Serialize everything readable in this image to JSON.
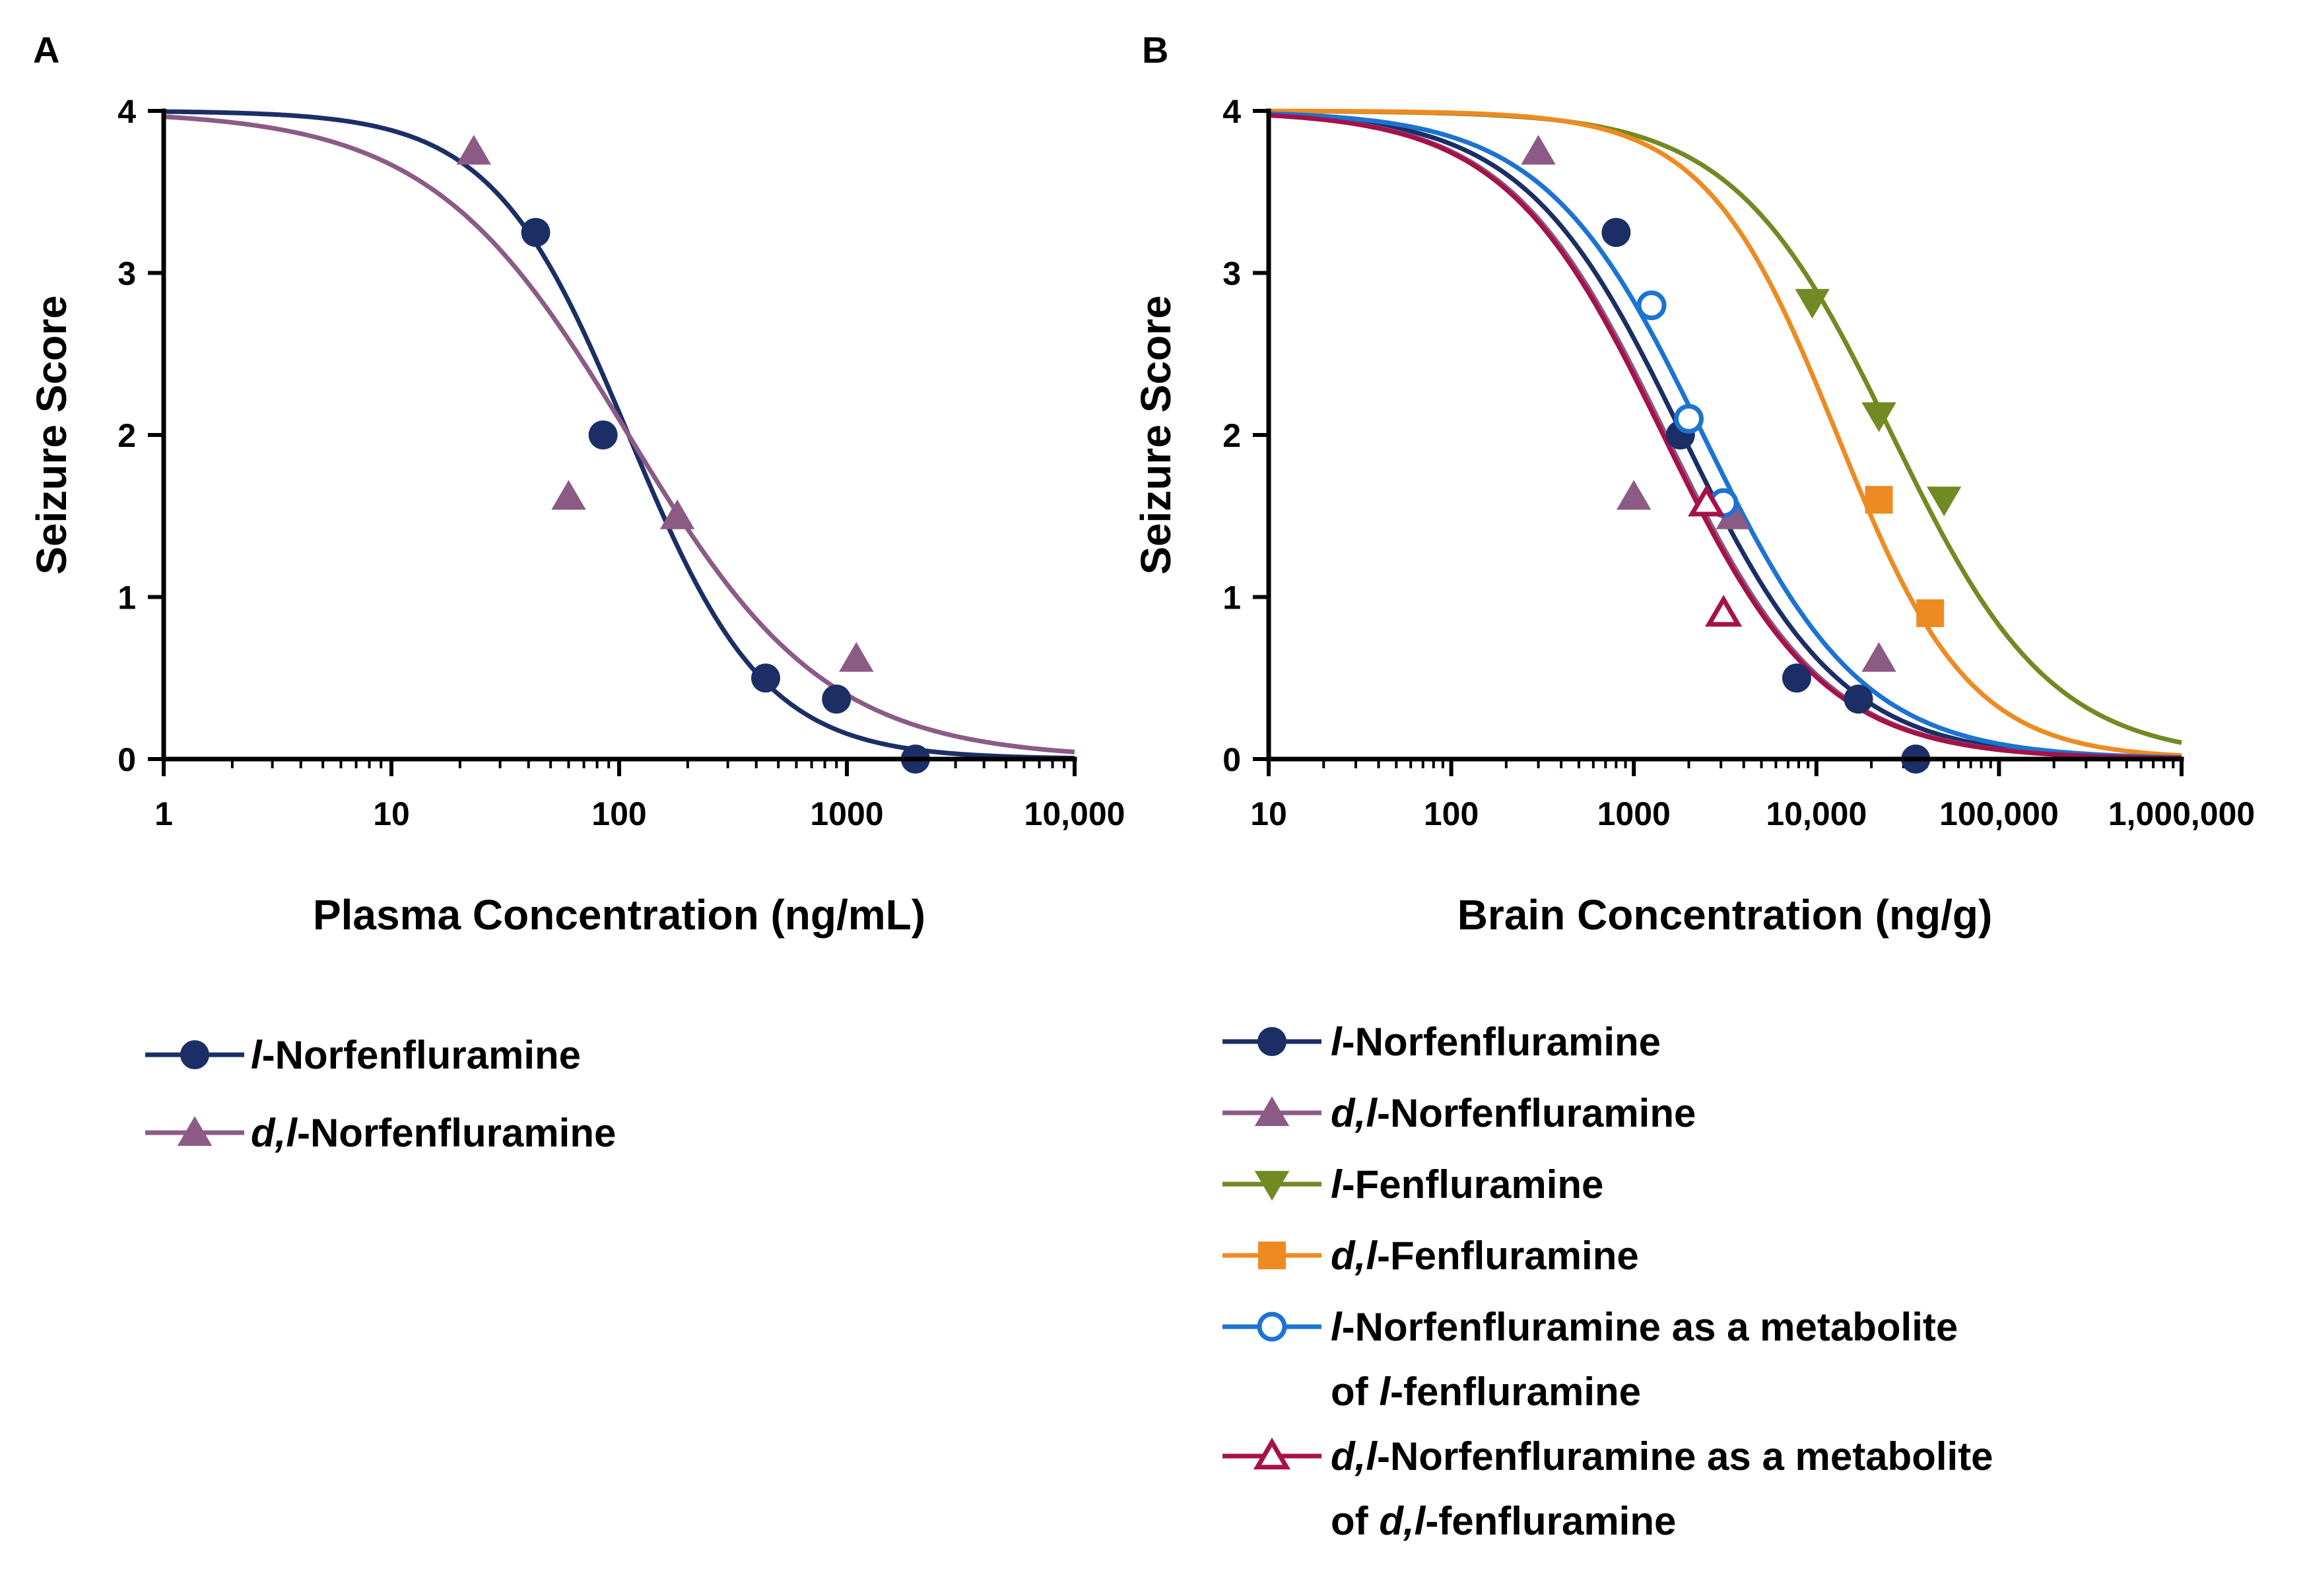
{
  "chart_data": [
    {
      "type": "scatter",
      "panel_label": "A",
      "xlabel": "Plasma Concentration (ng/mL)",
      "ylabel": "Seizure Score",
      "xscale": "log",
      "xlim": [
        1,
        10000
      ],
      "ylim": [
        0,
        4
      ],
      "xticks": [
        1,
        10,
        100,
        1000,
        10000
      ],
      "xtick_labels": [
        "1",
        "10",
        "100",
        "1000",
        "10,000"
      ],
      "yticks": [
        0,
        1,
        2,
        3,
        4
      ],
      "ytick_labels": [
        "0",
        "1",
        "2",
        "3",
        "4"
      ],
      "legend": {
        "placement": "below",
        "entries": [
          {
            "parts": [
              {
                "t": "l",
                "i": true
              },
              {
                "t": "-Norfenfluramine",
                "i": false
              }
            ],
            "series": "A_lnor"
          },
          {
            "parts": [
              {
                "t": "d,l",
                "i": true
              },
              {
                "t": "-Norfenfluramine",
                "i": false
              }
            ],
            "series": "A_dlnor"
          }
        ]
      },
      "series": [
        {
          "id": "A_lnor",
          "name": "l-Norfenfluramine",
          "color": "#1b2f66",
          "marker": "circle",
          "filled": true,
          "x": [
            43,
            85,
            440,
            900,
            2000
          ],
          "y": [
            3.25,
            2.0,
            0.5,
            0.37,
            0.0
          ],
          "fit": {
            "top": 4,
            "bottom": 0,
            "ec50": 110,
            "hill": 1.45
          }
        },
        {
          "id": "A_dlnor",
          "name": "d,l-Norfenfluramine",
          "color": "#8b5b86",
          "marker": "triangle-up",
          "filled": true,
          "x": [
            23,
            60,
            180,
            1100
          ],
          "y": [
            3.75,
            1.62,
            1.5,
            0.62
          ],
          "fit": {
            "top": 4,
            "bottom": 0,
            "ec50": 110,
            "hill": 1.0
          }
        }
      ]
    },
    {
      "type": "scatter",
      "panel_label": "B",
      "xlabel": "Brain Concentration (ng/g)",
      "ylabel": "Seizure Score",
      "xscale": "log",
      "xlim": [
        10,
        1000000
      ],
      "ylim": [
        0,
        4
      ],
      "xticks": [
        10,
        100,
        1000,
        10000,
        100000,
        1000000
      ],
      "xtick_labels": [
        "10",
        "100",
        "1000",
        "10,000",
        "100,000",
        "1,000,000"
      ],
      "yticks": [
        0,
        1,
        2,
        3,
        4
      ],
      "ytick_labels": [
        "0",
        "1",
        "2",
        "3",
        "4"
      ],
      "legend": {
        "placement": "below",
        "entries": [
          {
            "parts": [
              {
                "t": "l",
                "i": true
              },
              {
                "t": "-Norfenfluramine",
                "i": false
              }
            ],
            "series": "B_lnor"
          },
          {
            "parts": [
              {
                "t": "d,l",
                "i": true
              },
              {
                "t": "-Norfenfluramine",
                "i": false
              }
            ],
            "series": "B_dlnor"
          },
          {
            "parts": [
              {
                "t": "l",
                "i": true
              },
              {
                "t": "-Fenfluramine",
                "i": false
              }
            ],
            "series": "B_lfen"
          },
          {
            "parts": [
              {
                "t": "d,l",
                "i": true
              },
              {
                "t": "-Fenfluramine",
                "i": false
              }
            ],
            "series": "B_dlfen"
          },
          {
            "parts": [
              {
                "t": "l",
                "i": true
              },
              {
                "t": "-Norfenfluramine as a metabolite",
                "i": false
              }
            ],
            "line2": [
              {
                "t": "of ",
                "i": false
              },
              {
                "t": "l",
                "i": true
              },
              {
                "t": "-fenfluramine",
                "i": false
              }
            ],
            "series": "B_lnor_met"
          },
          {
            "parts": [
              {
                "t": "d,l",
                "i": true
              },
              {
                "t": "-Norfenfluramine as a metabolite",
                "i": false
              }
            ],
            "line2": [
              {
                "t": "of ",
                "i": false
              },
              {
                "t": "d,l",
                "i": true
              },
              {
                "t": "-fenfluramine",
                "i": false
              }
            ],
            "series": "B_dlnor_met"
          }
        ]
      },
      "series": [
        {
          "id": "B_lnor",
          "name": "l-Norfenfluramine",
          "color": "#1b2f66",
          "marker": "circle",
          "filled": true,
          "x": [
            800,
            1800,
            7800,
            17000,
            35000
          ],
          "y": [
            3.25,
            2.0,
            0.5,
            0.37,
            0.0
          ],
          "fit": {
            "top": 4,
            "bottom": 0,
            "ec50": 1850,
            "hill": 1.0
          }
        },
        {
          "id": "B_dlnor",
          "name": "d,l-Norfenfluramine",
          "color": "#8b5b86",
          "marker": "triangle-up",
          "filled": true,
          "x": [
            300,
            1000,
            3500,
            22000
          ],
          "y": [
            3.75,
            1.62,
            1.5,
            0.62
          ],
          "fit": {
            "top": 4,
            "bottom": 0,
            "ec50": 1500,
            "hill": 1.0
          }
        },
        {
          "id": "B_lfen",
          "name": "l-Fenfluramine",
          "color": "#718a23",
          "marker": "triangle-down",
          "filled": true,
          "x": [
            9500,
            22000,
            50000
          ],
          "y": [
            2.82,
            2.12,
            1.6
          ],
          "fit": {
            "top": 4,
            "bottom": 0,
            "ec50": 26000,
            "hill": 1.0
          }
        },
        {
          "id": "B_dlfen",
          "name": "d,l-Fenfluramine",
          "color": "#ed8b22",
          "marker": "square",
          "filled": true,
          "x": [
            22000,
            42000
          ],
          "y": [
            1.6,
            0.9
          ],
          "fit": {
            "top": 4,
            "bottom": 0,
            "ec50": 13000,
            "hill": 1.2
          }
        },
        {
          "id": "B_lnor_met",
          "name": "l-Norfenfluramine as a metabolite of l-fenfluramine",
          "color": "#1d73d1",
          "marker": "circle",
          "filled": false,
          "x": [
            1250,
            2000,
            3100
          ],
          "y": [
            2.8,
            2.1,
            1.58
          ],
          "fit": {
            "top": 4,
            "bottom": 0,
            "ec50": 2400,
            "hill": 1.0
          }
        },
        {
          "id": "B_dlnor_met",
          "name": "d,l-Norfenfluramine as a metabolite of d,l-fenfluramine",
          "color": "#a5124a",
          "marker": "triangle-up",
          "filled": false,
          "x": [
            2500,
            3100
          ],
          "y": [
            1.58,
            0.9
          ],
          "fit": {
            "top": 4,
            "bottom": 0,
            "ec50": 1450,
            "hill": 1.0
          }
        }
      ]
    }
  ]
}
